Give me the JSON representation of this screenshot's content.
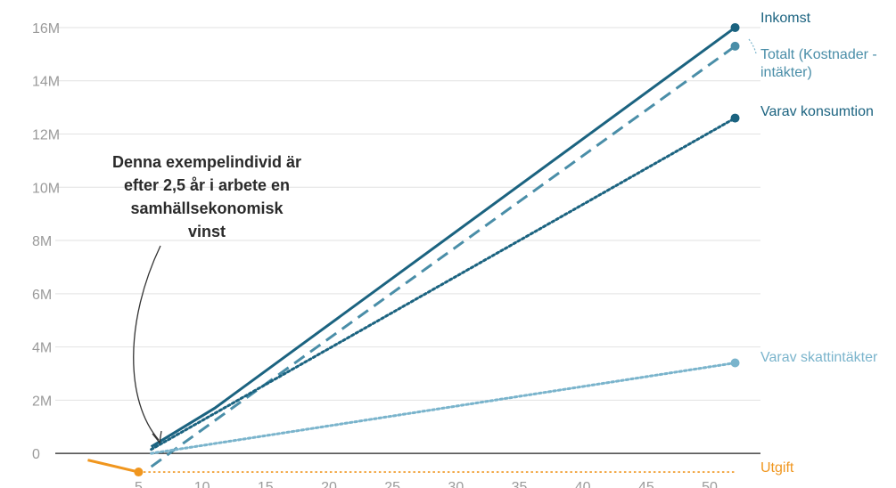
{
  "chart_data": {
    "type": "line",
    "xlim": [
      -1,
      54
    ],
    "ylim": [
      -1200000,
      16400000
    ],
    "x_ticks": [
      5,
      10,
      15,
      20,
      25,
      30,
      35,
      40,
      45,
      50
    ],
    "x_tick_labels": [
      "5",
      "10",
      "15",
      "20",
      "25",
      "30",
      "35",
      "40",
      "45",
      "50"
    ],
    "y_ticks": [
      0,
      2000000,
      4000000,
      6000000,
      8000000,
      10000000,
      12000000,
      14000000,
      16000000
    ],
    "y_tick_labels": [
      "0",
      "2M",
      "4M",
      "6M",
      "8M",
      "10M",
      "12M",
      "14M",
      "16M"
    ],
    "grid": true,
    "series": [
      {
        "name": "Inkomst",
        "color": "#1b6380",
        "dash": "solid",
        "x": [
          6,
          11,
          52
        ],
        "y": [
          250000,
          1700000,
          16000000
        ],
        "end_marker": true
      },
      {
        "name": "Totalt (Kostnader - intäkter)",
        "color": "#4a8ea8",
        "dash": "dashed",
        "x": [
          6,
          8,
          52
        ],
        "y": [
          -500000,
          200000,
          15300000
        ],
        "end_marker": true
      },
      {
        "name": "Varav konsumtion",
        "color": "#1b6380",
        "dash": "dotted",
        "x": [
          6,
          52
        ],
        "y": [
          150000,
          12600000
        ],
        "end_marker": true
      },
      {
        "name": "Varav skattintäkter",
        "color": "#7ab4cc",
        "dash": "dotted",
        "x": [
          6,
          52
        ],
        "y": [
          0,
          3400000
        ],
        "end_marker": true
      },
      {
        "name": "Utgift",
        "color": "#f0961e",
        "dash": "solid",
        "x": [
          1,
          5
        ],
        "y": [
          -250000,
          -700000
        ],
        "end_marker": true,
        "extension": {
          "x": [
            5,
            52
          ],
          "y": [
            -700000,
            -700000
          ],
          "dash": "dotted"
        }
      }
    ],
    "series_labels": {
      "inkomst": "Inkomst",
      "totalt_line1": "Totalt (Kostnader -",
      "totalt_line2": "intäkter)",
      "konsumtion": "Varav konsumtion",
      "skatt": "Varav skattintäkter",
      "utgift": "Utgift"
    },
    "annotation": {
      "lines": [
        "Denna exempelindivid är",
        "efter 2,5 år i arbete en",
        "samhällsekonomisk",
        "vinst"
      ],
      "points_to": {
        "x": 8,
        "y": 100000
      }
    }
  }
}
